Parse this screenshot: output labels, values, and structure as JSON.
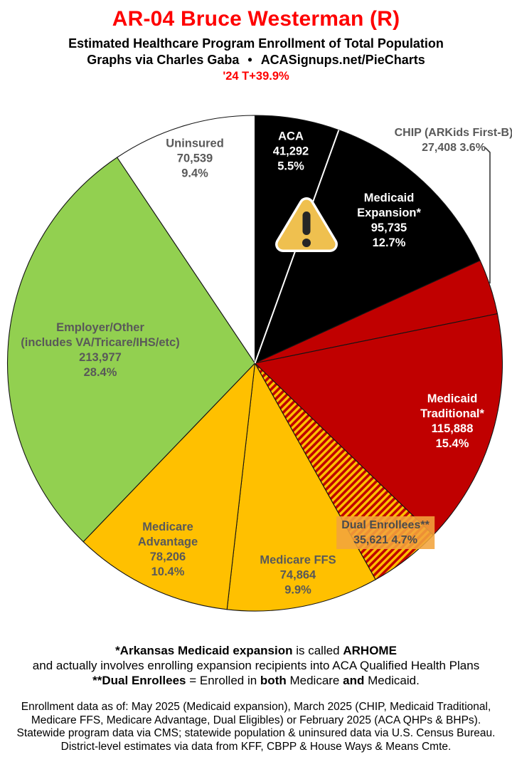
{
  "header": {
    "title": "AR-04 Bruce Westerman (R)",
    "subtitle": "Estimated Healthcare Program Enrollment of Total Population",
    "byline_left": "Graphs via Charles Gaba",
    "byline_sep": "•",
    "byline_right": "ACASignups.net/PieCharts",
    "growth_note": "'24 T+39.9%",
    "title_color": "#FE0000",
    "note_color": "#FE0000"
  },
  "chart_data": {
    "type": "pie",
    "title": "Estimated Healthcare Program Enrollment of Total Population",
    "start_angle_deg_from_top": 0,
    "direction": "clockwise",
    "colors": {
      "black": "#000000",
      "red": "#C00000",
      "gold": "#FFC000",
      "green": "#92D050",
      "white": "#FFFFFF",
      "label_gray": "#595959",
      "dual_label_bg": "#F3A43C"
    },
    "slices": [
      {
        "id": "aca",
        "name": "ACA",
        "value": 41292,
        "value_display": "41,292",
        "pct": 5.5,
        "pct_display": "5.5%",
        "color": "#000000",
        "label_lines": [
          "ACA",
          "41,292",
          "5.5%"
        ]
      },
      {
        "id": "medicaid-expansion",
        "name": "Medicaid Expansion*",
        "value": 95735,
        "value_display": "95,735",
        "pct": 12.7,
        "pct_display": "12.7%",
        "color": "#000000",
        "label_lines": [
          "Medicaid",
          "Expansion*",
          "95,735",
          "12.7%"
        ]
      },
      {
        "id": "chip",
        "name": "CHIP (ARKids First-B)",
        "value": 27408,
        "value_display": "27,408",
        "pct": 3.6,
        "pct_display": "3.6%",
        "color": "#C00000",
        "label_lines": [
          "CHIP (ARKids First-B)",
          "27,408 3.6%"
        ]
      },
      {
        "id": "medicaid-traditional",
        "name": "Medicaid Traditional*",
        "value": 115888,
        "value_display": "115,888",
        "pct": 15.4,
        "pct_display": "15.4%",
        "color": "#C00000",
        "label_lines": [
          "Medicaid",
          "Traditional*",
          "115,888",
          "15.4%"
        ]
      },
      {
        "id": "dual-enrollees",
        "name": "Dual Enrollees**",
        "value": 35621,
        "value_display": "35,621",
        "pct": 4.7,
        "pct_display": "4.7%",
        "color": "#C00000",
        "pattern": "red-gold-hatch",
        "label_lines": [
          "Dual Enrollees**",
          "35,621 4.7%"
        ]
      },
      {
        "id": "medicare-ffs",
        "name": "Medicare FFS",
        "value": 74864,
        "value_display": "74,864",
        "pct": 9.9,
        "pct_display": "9.9%",
        "color": "#FFC000",
        "label_lines": [
          "Medicare FFS",
          "74,864",
          "9.9%"
        ]
      },
      {
        "id": "medicare-advantage",
        "name": "Medicare Advantage",
        "value": 78206,
        "value_display": "78,206",
        "pct": 10.4,
        "pct_display": "10.4%",
        "color": "#FFC000",
        "label_lines": [
          "Medicare",
          "Advantage",
          "78,206",
          "10.4%"
        ]
      },
      {
        "id": "employer-other",
        "name": "Employer/Other (includes VA/Tricare/IHS/etc)",
        "value": 213977,
        "value_display": "213,977",
        "pct": 28.4,
        "pct_display": "28.4%",
        "color": "#92D050",
        "label_lines": [
          "Employer/Other",
          "(includes VA/Tricare/IHS/etc)",
          "213,977",
          "28.4%"
        ]
      },
      {
        "id": "uninsured",
        "name": "Uninsured",
        "value": 70539,
        "value_display": "70,539",
        "pct": 9.4,
        "pct_display": "9.4%",
        "color": "#FFFFFF",
        "label_lines": [
          "Uninsured",
          "70,539",
          "9.4%"
        ]
      }
    ]
  },
  "footnotes": {
    "l1b1": "*Arkansas Medicaid expansion",
    "l1r1": " is called ",
    "l1b2": "ARHOME",
    "l2": "and actually involves enrolling expansion recipients into ACA Qualified Health Plans",
    "l3b1": "**Dual Enrollees",
    "l3r1": " = Enrolled in ",
    "l3b2": "both",
    "l3r2": " Medicare ",
    "l3b3": "and",
    "l3r3": " Medicaid."
  },
  "source": {
    "lines": [
      "Enrollment data as of: May 2025 (Medicaid expansion), March 2025 (CHIP, Medicaid Traditional,",
      "Medicare FFS, Medicare Advantage, Dual Eligibles) or February 2025 (ACA QHPs & BHPs).",
      "Statewide program data via CMS; statewide population & uninsured data via U.S. Census Bureau.",
      "District-level estimates via data from KFF, CBPP & House Ways & Means Cmte."
    ]
  }
}
